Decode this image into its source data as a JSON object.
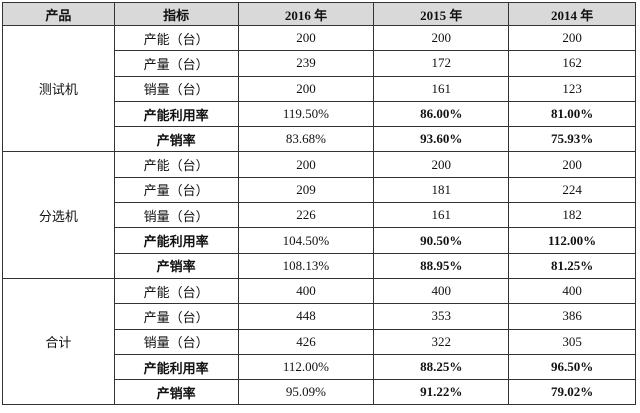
{
  "table": {
    "header": [
      "产品",
      "指标",
      "2016 年",
      "2015 年",
      "2014 年"
    ],
    "groups": [
      {
        "product": "测试机",
        "rows": [
          [
            "产能（台）",
            "200",
            "200",
            "200"
          ],
          [
            "产量（台）",
            "239",
            "172",
            "162"
          ],
          [
            "销量（台）",
            "200",
            "161",
            "123"
          ],
          [
            "产能利用率",
            "119.50%",
            "86.00%",
            "81.00%"
          ],
          [
            "产销率",
            "83.68%",
            "93.60%",
            "75.93%"
          ]
        ]
      },
      {
        "product": "分选机",
        "rows": [
          [
            "产能（台）",
            "200",
            "200",
            "200"
          ],
          [
            "产量（台）",
            "209",
            "181",
            "224"
          ],
          [
            "销量（台）",
            "226",
            "161",
            "182"
          ],
          [
            "产能利用率",
            "104.50%",
            "90.50%",
            "112.00%"
          ],
          [
            "产销率",
            "108.13%",
            "88.95%",
            "81.25%"
          ]
        ]
      },
      {
        "product": "合计",
        "rows": [
          [
            "产能（台）",
            "400",
            "400",
            "400"
          ],
          [
            "产量（台）",
            "448",
            "353",
            "386"
          ],
          [
            "销量（台）",
            "426",
            "322",
            "305"
          ],
          [
            "产能利用率",
            "112.00%",
            "88.25%",
            "96.50%"
          ],
          [
            "产销率",
            "95.09%",
            "91.22%",
            "79.02%"
          ]
        ]
      }
    ]
  }
}
